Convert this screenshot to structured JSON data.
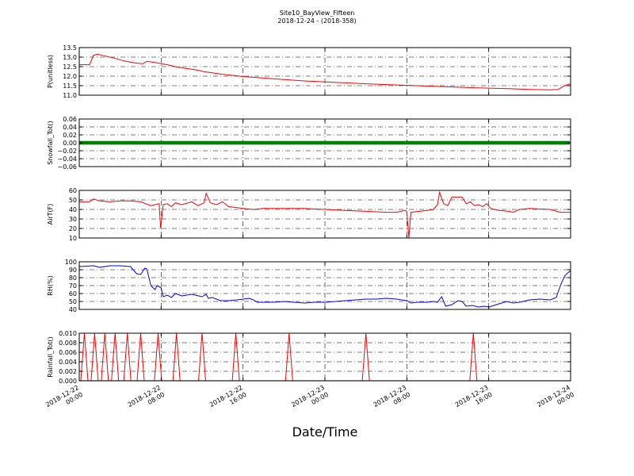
{
  "title": {
    "line1": "Site10_BayView_Fifteen",
    "line2": "2018-12-24 - (2018-358)"
  },
  "xaxis_label": "Date/Time",
  "colors": {
    "red": "#ff0000",
    "green": "#008000",
    "blue": "#0000ff",
    "axis": "#000000"
  },
  "chart_data": [
    {
      "type": "line",
      "ylabel": "P(unitless)",
      "ylim": [
        11.0,
        13.5
      ],
      "yticks": [
        "11.0",
        "11.5",
        "12.0",
        "12.5",
        "13.0",
        "13.5"
      ],
      "xlim": [
        0,
        48
      ],
      "xticks": [
        {
          "x": 0,
          "date": "2018-12-22",
          "time": "00:00"
        },
        {
          "x": 8,
          "date": "2018-12-22",
          "time": "08:00"
        },
        {
          "x": 16,
          "date": "2018-12-22",
          "time": "16:00"
        },
        {
          "x": 24,
          "date": "2018-12-23",
          "time": "00:00"
        },
        {
          "x": 32,
          "date": "2018-12-23",
          "time": "08:00"
        },
        {
          "x": 40,
          "date": "2018-12-23",
          "time": "16:00"
        },
        {
          "x": 48,
          "date": "2018-12-24",
          "time": "00:00"
        }
      ],
      "series": [
        {
          "color": "#ff0000",
          "points": [
            [
              0,
              12.6
            ],
            [
              1,
              12.6
            ],
            [
              1.4,
              13.1
            ],
            [
              1.8,
              13.15
            ],
            [
              2.6,
              13.05
            ],
            [
              3.4,
              12.95
            ],
            [
              4.4,
              12.8
            ],
            [
              5.4,
              12.7
            ],
            [
              6.2,
              12.65
            ],
            [
              6.6,
              12.78
            ],
            [
              7.6,
              12.7
            ],
            [
              8.6,
              12.6
            ],
            [
              9.4,
              12.5
            ],
            [
              10.2,
              12.42
            ],
            [
              11.2,
              12.35
            ],
            [
              12.4,
              12.22
            ],
            [
              14,
              12.1
            ],
            [
              16,
              11.98
            ],
            [
              18,
              11.9
            ],
            [
              20,
              11.82
            ],
            [
              22,
              11.75
            ],
            [
              24,
              11.7
            ],
            [
              26,
              11.65
            ],
            [
              28,
              11.6
            ],
            [
              30,
              11.56
            ],
            [
              32,
              11.52
            ],
            [
              34,
              11.48
            ],
            [
              36,
              11.44
            ],
            [
              38,
              11.4
            ],
            [
              40,
              11.37
            ],
            [
              42,
              11.34
            ],
            [
              44,
              11.3
            ],
            [
              46,
              11.28
            ],
            [
              46.8,
              11.3
            ],
            [
              47.4,
              11.5
            ],
            [
              48,
              11.6
            ]
          ]
        }
      ]
    },
    {
      "type": "scatter",
      "ylabel": "Snowfall_Tot()",
      "ylim": [
        -0.06,
        0.06
      ],
      "yticks": [
        "−0.06",
        "−0.04",
        "−0.02",
        "0.00",
        "0.02",
        "0.04",
        "0.06"
      ],
      "xlim": [
        0,
        48
      ],
      "series": [
        {
          "color": "#008000",
          "constant": 0.0
        }
      ]
    },
    {
      "type": "line",
      "ylabel": "AirT(F)",
      "ylim": [
        10,
        60
      ],
      "yticks": [
        "10",
        "20",
        "30",
        "40",
        "50",
        "60"
      ],
      "xlim": [
        0,
        48
      ],
      "series": [
        {
          "color": "#ff0000",
          "points": [
            [
              0,
              48
            ],
            [
              1,
              48
            ],
            [
              1.4,
              51
            ],
            [
              2,
              49
            ],
            [
              3,
              48
            ],
            [
              4,
              49
            ],
            [
              5,
              49
            ],
            [
              6,
              48
            ],
            [
              7,
              44
            ],
            [
              7.8,
              46
            ],
            [
              7.95,
              20
            ],
            [
              8.2,
              45
            ],
            [
              8.6,
              46
            ],
            [
              9,
              43
            ],
            [
              9.4,
              47
            ],
            [
              10,
              45
            ],
            [
              11,
              48
            ],
            [
              11.6,
              44
            ],
            [
              12.2,
              47
            ],
            [
              12.4,
              57
            ],
            [
              12.8,
              47
            ],
            [
              13.4,
              45
            ],
            [
              14,
              48
            ],
            [
              14.6,
              43
            ],
            [
              16,
              41
            ],
            [
              17,
              40
            ],
            [
              18,
              41
            ],
            [
              19,
              41
            ],
            [
              20,
              41
            ],
            [
              22,
              41
            ],
            [
              24,
              40
            ],
            [
              26,
              39
            ],
            [
              28,
              38
            ],
            [
              30,
              37
            ],
            [
              31,
              37
            ],
            [
              31.8,
              39
            ],
            [
              32,
              38
            ],
            [
              32.2,
              10
            ],
            [
              32.4,
              37
            ],
            [
              34,
              39
            ],
            [
              34.6,
              40
            ],
            [
              35,
              45
            ],
            [
              35.2,
              58
            ],
            [
              35.6,
              46
            ],
            [
              36,
              44
            ],
            [
              36.4,
              53
            ],
            [
              37,
              53
            ],
            [
              37.4,
              53
            ],
            [
              37.8,
              46
            ],
            [
              38.2,
              48
            ],
            [
              38.6,
              44
            ],
            [
              39,
              45
            ],
            [
              39.4,
              43
            ],
            [
              39.8,
              46
            ],
            [
              40.2,
              41
            ],
            [
              41,
              39
            ],
            [
              42,
              38
            ],
            [
              42.4,
              37
            ],
            [
              43,
              40
            ],
            [
              44,
              41
            ],
            [
              46,
              40
            ],
            [
              47,
              37
            ],
            [
              48,
              37
            ]
          ]
        }
      ]
    },
    {
      "type": "line",
      "ylabel": "RH(%)",
      "ylim": [
        40,
        100
      ],
      "yticks": [
        "40",
        "50",
        "60",
        "70",
        "80",
        "90",
        "100"
      ],
      "xlim": [
        0,
        48
      ],
      "series": [
        {
          "color": "#0000ff",
          "points": [
            [
              0,
              94
            ],
            [
              1.4,
              95
            ],
            [
              2,
              93
            ],
            [
              3,
              95
            ],
            [
              4,
              95
            ],
            [
              5,
              94
            ],
            [
              5.6,
              85
            ],
            [
              6,
              84
            ],
            [
              6.4,
              92
            ],
            [
              6.6,
              91
            ],
            [
              7,
              70
            ],
            [
              7.4,
              65
            ],
            [
              7.6,
              70
            ],
            [
              8,
              67
            ],
            [
              8.2,
              56
            ],
            [
              8.6,
              58
            ],
            [
              9,
              55
            ],
            [
              9.4,
              60
            ],
            [
              10,
              57
            ],
            [
              11,
              59
            ],
            [
              12,
              56
            ],
            [
              12.4,
              59
            ],
            [
              12.6,
              54
            ],
            [
              13,
              55
            ],
            [
              13.8,
              51
            ],
            [
              14.6,
              51
            ],
            [
              15.4,
              52
            ],
            [
              16,
              53
            ],
            [
              16.6,
              54
            ],
            [
              17,
              52
            ],
            [
              17.4,
              49
            ],
            [
              18,
              49
            ],
            [
              19,
              49
            ],
            [
              20,
              50
            ],
            [
              21,
              49
            ],
            [
              22,
              48
            ],
            [
              23,
              49
            ],
            [
              24,
              49
            ],
            [
              25,
              50
            ],
            [
              26,
              51
            ],
            [
              27,
              52
            ],
            [
              28,
              53
            ],
            [
              29,
              53
            ],
            [
              30,
              54
            ],
            [
              31,
              53
            ],
            [
              32,
              51
            ],
            [
              32.4,
              48
            ],
            [
              33,
              49
            ],
            [
              34,
              49
            ],
            [
              34.6,
              50
            ],
            [
              35,
              49
            ],
            [
              35.4,
              56
            ],
            [
              35.8,
              44
            ],
            [
              36.4,
              46
            ],
            [
              37,
              51
            ],
            [
              37.4,
              50
            ],
            [
              37.8,
              44
            ],
            [
              38.4,
              45
            ],
            [
              39,
              43
            ],
            [
              39.6,
              44
            ],
            [
              40,
              43
            ],
            [
              41,
              47
            ],
            [
              41.8,
              50
            ],
            [
              42.4,
              48
            ],
            [
              43,
              49
            ],
            [
              44,
              52
            ],
            [
              45,
              53
            ],
            [
              46,
              52
            ],
            [
              46.6,
              55
            ],
            [
              47,
              70
            ],
            [
              47.4,
              82
            ],
            [
              47.8,
              87
            ],
            [
              48,
              88
            ]
          ]
        }
      ]
    },
    {
      "type": "line",
      "ylabel": "Rainfall_Tot()",
      "ylim": [
        0.0,
        0.01
      ],
      "yticks": [
        "0.000",
        "0.002",
        "0.004",
        "0.006",
        "0.008",
        "0.010"
      ],
      "xlim": [
        0,
        48
      ],
      "series": [
        {
          "color": "#ff0000",
          "spikes": [
            0.5,
            1.5,
            2.5,
            3.5,
            4.7,
            6.0,
            7.7,
            9.5,
            12.0,
            15.3,
            20.5,
            28.0,
            38.5
          ],
          "spike_height": 0.01,
          "spike_halfwidth": 0.35
        }
      ]
    }
  ]
}
